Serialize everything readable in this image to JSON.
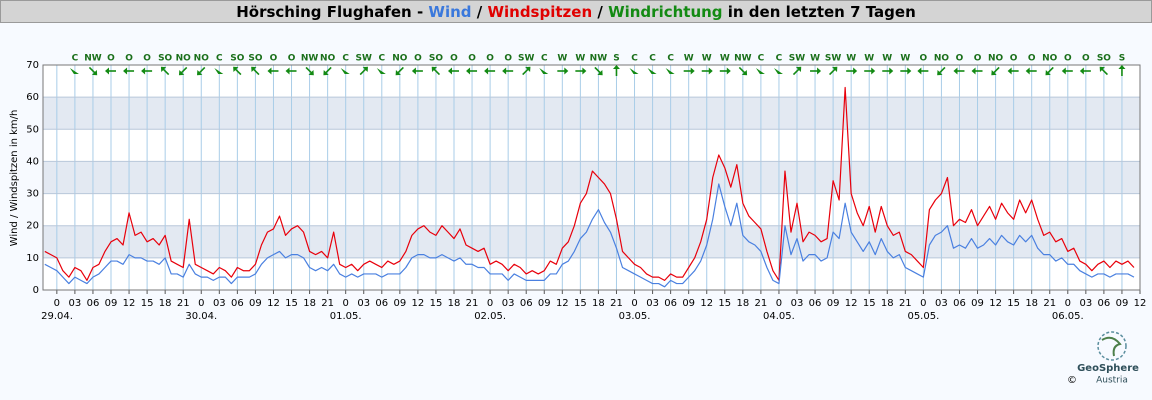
{
  "chart_data": {
    "type": "line",
    "title_parts": [
      {
        "text": "Hörsching Flughafen - ",
        "color": "#000000"
      },
      {
        "text": "Wind",
        "color": "#3a78dc"
      },
      {
        "text": " / ",
        "color": "#000000"
      },
      {
        "text": "Windspitzen",
        "color": "#e00000"
      },
      {
        "text": " / ",
        "color": "#000000"
      },
      {
        "text": "Windrichtung",
        "color": "#138a13"
      },
      {
        "text": " in den letzten 7 Tagen",
        "color": "#000000"
      }
    ],
    "ylabel": "Wind / Windspitzen in km/h",
    "ylim": [
      0,
      70
    ],
    "yticks": [
      0,
      10,
      20,
      30,
      40,
      50,
      60,
      70
    ],
    "xlim": [
      -2.3,
      180
    ],
    "grid": true,
    "bands": true,
    "xticks": [
      0,
      {
        "value": 3,
        "label": "03"
      },
      {
        "value": 6,
        "label": "06"
      },
      {
        "value": 9,
        "label": "09"
      },
      {
        "value": 12,
        "label": "12"
      },
      {
        "value": 15,
        "label": "15"
      },
      {
        "value": 18,
        "label": "18"
      },
      {
        "value": 21,
        "label": "21"
      },
      {
        "value": 24,
        "label": "0"
      },
      {
        "value": 27,
        "label": "03"
      },
      {
        "value": 30,
        "label": "06"
      },
      {
        "value": 33,
        "label": "09"
      },
      {
        "value": 36,
        "label": "12"
      },
      {
        "value": 39,
        "label": "15"
      },
      {
        "value": 42,
        "label": "18"
      },
      {
        "value": 45,
        "label": "21"
      },
      {
        "value": 48,
        "label": "0"
      },
      {
        "value": 51,
        "label": "03"
      },
      {
        "value": 54,
        "label": "06"
      },
      {
        "value": 57,
        "label": "09"
      },
      {
        "value": 60,
        "label": "12"
      },
      {
        "value": 63,
        "label": "15"
      },
      {
        "value": 66,
        "label": "18"
      },
      {
        "value": 69,
        "label": "21"
      },
      {
        "value": 72,
        "label": "0"
      },
      {
        "value": 75,
        "label": "03"
      },
      {
        "value": 78,
        "label": "06"
      },
      {
        "value": 81,
        "label": "09"
      },
      {
        "value": 84,
        "label": "12"
      },
      {
        "value": 87,
        "label": "15"
      },
      {
        "value": 90,
        "label": "18"
      },
      {
        "value": 93,
        "label": "21"
      },
      {
        "value": 96,
        "label": "0"
      },
      {
        "value": 99,
        "label": "03"
      },
      {
        "value": 102,
        "label": "06"
      },
      {
        "value": 105,
        "label": "09"
      },
      {
        "value": 108,
        "label": "12"
      },
      {
        "value": 111,
        "label": "15"
      },
      {
        "value": 114,
        "label": "18"
      },
      {
        "value": 117,
        "label": "21"
      },
      {
        "value": 120,
        "label": "0"
      },
      {
        "value": 123,
        "label": "03"
      },
      {
        "value": 126,
        "label": "06"
      },
      {
        "value": 129,
        "label": "09"
      },
      {
        "value": 132,
        "label": "12"
      },
      {
        "value": 135,
        "label": "15"
      },
      {
        "value": 138,
        "label": "18"
      },
      {
        "value": 141,
        "label": "21"
      },
      {
        "value": 144,
        "label": "0"
      },
      {
        "value": 147,
        "label": "03"
      },
      {
        "value": 150,
        "label": "06"
      },
      {
        "value": 153,
        "label": "09"
      },
      {
        "value": 156,
        "label": "12"
      },
      {
        "value": 159,
        "label": "15"
      },
      {
        "value": 162,
        "label": "18"
      },
      {
        "value": 165,
        "label": "21"
      },
      {
        "value": 168,
        "label": "0"
      },
      {
        "value": 171,
        "label": "03"
      },
      {
        "value": 174,
        "label": "06"
      },
      {
        "value": 177,
        "label": "09"
      },
      {
        "value": 180,
        "label": "12"
      }
    ],
    "day_ticks": [
      {
        "value": 0,
        "label": "29.04."
      },
      {
        "value": 24,
        "label": "30.04."
      },
      {
        "value": 48,
        "label": "01.05."
      },
      {
        "value": 72,
        "label": "02.05."
      },
      {
        "value": 96,
        "label": "03.05."
      },
      {
        "value": 120,
        "label": "04.05."
      },
      {
        "value": 144,
        "label": "05.05."
      },
      {
        "value": 168,
        "label": "06.05."
      }
    ],
    "direction": {
      "color": "#138a13",
      "x": [
        3,
        6,
        9,
        12,
        15,
        18,
        21,
        24,
        27,
        30,
        33,
        36,
        39,
        42,
        45,
        48,
        51,
        54,
        57,
        60,
        63,
        66,
        69,
        72,
        75,
        78,
        81,
        84,
        87,
        90,
        93,
        96,
        99,
        102,
        105,
        108,
        111,
        114,
        117,
        120,
        123,
        126,
        129,
        132,
        135,
        138,
        141,
        144,
        147,
        150,
        153,
        156,
        159,
        162,
        165,
        168,
        171,
        174,
        177
      ],
      "labels": [
        "C",
        "NW",
        "O",
        "O",
        "O",
        "SO",
        "NO",
        "NO",
        "C",
        "SO",
        "SO",
        "O",
        "O",
        "NW",
        "NO",
        "C",
        "SW",
        "C",
        "NO",
        "O",
        "SO",
        "O",
        "O",
        "O",
        "O",
        "SW",
        "C",
        "W",
        "W",
        "NW",
        "S",
        "C",
        "C",
        "C",
        "W",
        "W",
        "W",
        "NW",
        "C",
        "C",
        "SW",
        "W",
        "SW",
        "W",
        "W",
        "W",
        "W",
        "O",
        "NO",
        "O",
        "O",
        "NO",
        "O",
        "O",
        "NO",
        "O",
        "O",
        "SO",
        "S"
      ]
    },
    "x": [
      -2,
      -1,
      0,
      1,
      2,
      3,
      4,
      5,
      6,
      7,
      8,
      9,
      10,
      11,
      12,
      13,
      14,
      15,
      16,
      17,
      18,
      19,
      20,
      21,
      22,
      23,
      24,
      25,
      26,
      27,
      28,
      29,
      30,
      31,
      32,
      33,
      34,
      35,
      36,
      37,
      38,
      39,
      40,
      41,
      42,
      43,
      44,
      45,
      46,
      47,
      48,
      49,
      50,
      51,
      52,
      53,
      54,
      55,
      56,
      57,
      58,
      59,
      60,
      61,
      62,
      63,
      64,
      65,
      66,
      67,
      68,
      69,
      70,
      71,
      72,
      73,
      74,
      75,
      76,
      77,
      78,
      79,
      80,
      81,
      82,
      83,
      84,
      85,
      86,
      87,
      88,
      89,
      90,
      91,
      92,
      93,
      94,
      95,
      96,
      97,
      98,
      99,
      100,
      101,
      102,
      103,
      104,
      105,
      106,
      107,
      108,
      109,
      110,
      111,
      112,
      113,
      114,
      115,
      116,
      117,
      118,
      119,
      120,
      121,
      122,
      123,
      124,
      125,
      126,
      127,
      128,
      129,
      130,
      131,
      132,
      133,
      134,
      135,
      136,
      137,
      138,
      139,
      140,
      141,
      142,
      143,
      144,
      145,
      146,
      147,
      148,
      149,
      150,
      151,
      152,
      153,
      154,
      155,
      156,
      157,
      158,
      159,
      160,
      161,
      162,
      163,
      164,
      165,
      166,
      167,
      168,
      169,
      170,
      171,
      172,
      173,
      174,
      175,
      176,
      177,
      178,
      179
    ],
    "series": [
      {
        "name": "Windspitzen",
        "color": "#e8000b",
        "values": [
          12,
          11,
          10,
          6,
          4,
          7,
          6,
          3,
          7,
          8,
          12,
          15,
          16,
          14,
          24,
          17,
          18,
          15,
          16,
          14,
          17,
          9,
          8,
          7,
          22,
          8,
          7,
          6,
          5,
          7,
          6,
          4,
          7,
          6,
          6,
          8,
          14,
          18,
          19,
          23,
          17,
          19,
          20,
          18,
          12,
          11,
          12,
          10,
          18,
          8,
          7,
          8,
          6,
          8,
          9,
          8,
          7,
          9,
          8,
          9,
          12,
          17,
          19,
          20,
          18,
          17,
          20,
          18,
          16,
          19,
          14,
          13,
          12,
          13,
          8,
          9,
          8,
          6,
          8,
          7,
          5,
          6,
          5,
          6,
          9,
          8,
          13,
          15,
          20,
          27,
          30,
          37,
          35,
          33,
          30,
          22,
          12,
          10,
          8,
          7,
          5,
          4,
          4,
          3,
          5,
          4,
          4,
          7,
          10,
          15,
          22,
          35,
          42,
          38,
          32,
          39,
          27,
          23,
          21,
          19,
          12,
          6,
          3,
          37,
          18,
          27,
          15,
          18,
          17,
          15,
          16,
          34,
          28,
          63,
          30,
          24,
          20,
          26,
          18,
          26,
          20,
          17,
          18,
          12,
          11,
          9,
          7,
          25,
          28,
          30,
          35,
          20,
          22,
          21,
          25,
          20,
          23,
          26,
          22,
          27,
          24,
          22,
          28,
          24,
          28,
          22,
          17,
          18,
          15,
          16,
          12,
          13,
          9,
          8,
          6,
          8,
          9,
          7,
          9,
          8,
          9,
          7
        ]
      },
      {
        "name": "Wind",
        "color": "#4a80e0",
        "values": [
          8,
          7,
          6,
          4,
          2,
          4,
          3,
          2,
          4,
          5,
          7,
          9,
          9,
          8,
          11,
          10,
          10,
          9,
          9,
          8,
          10,
          5,
          5,
          4,
          8,
          5,
          4,
          4,
          3,
          4,
          4,
          2,
          4,
          4,
          4,
          5,
          8,
          10,
          11,
          12,
          10,
          11,
          11,
          10,
          7,
          6,
          7,
          6,
          8,
          5,
          4,
          5,
          4,
          5,
          5,
          5,
          4,
          5,
          5,
          5,
          7,
          10,
          11,
          11,
          10,
          10,
          11,
          10,
          9,
          10,
          8,
          8,
          7,
          7,
          5,
          5,
          5,
          3,
          5,
          4,
          3,
          3,
          3,
          3,
          5,
          5,
          8,
          9,
          12,
          16,
          18,
          22,
          25,
          21,
          18,
          13,
          7,
          6,
          5,
          4,
          3,
          2,
          2,
          1,
          3,
          2,
          2,
          4,
          6,
          9,
          14,
          22,
          33,
          26,
          20,
          27,
          17,
          15,
          14,
          12,
          7,
          3,
          2,
          20,
          11,
          16,
          9,
          11,
          11,
          9,
          10,
          18,
          16,
          27,
          18,
          15,
          12,
          15,
          11,
          16,
          12,
          10,
          11,
          7,
          6,
          5,
          4,
          14,
          17,
          18,
          20,
          13,
          14,
          13,
          16,
          13,
          14,
          16,
          14,
          17,
          15,
          14,
          17,
          15,
          17,
          13,
          11,
          11,
          9,
          10,
          8,
          8,
          6,
          5,
          4,
          5,
          5,
          4,
          5,
          5,
          5,
          4
        ]
      }
    ],
    "logo": {
      "name": "GeoSphere",
      "sub": "Austria",
      "copyright": "©"
    }
  }
}
